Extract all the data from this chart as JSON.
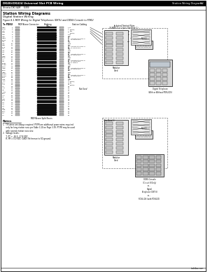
{
  "page_bg": "#ffffff",
  "border_color": "#000000",
  "header_left": "DK40i/DK424 Universal Slot PCB Wiring",
  "header_right": "Station Wiring Diagrams",
  "page_num": "8-2",
  "subtitle": "Strata DK I&M    5/99",
  "section_title": "Station Wiring Diagrams",
  "section_sub": "Digital Station Wiring",
  "figure_title": "Figure 8-1 MDF Wiring for Digital Telephones (DKTs) and DDSS Console to PDKU",
  "wire_colors_left": [
    "W-BL",
    "BL-W",
    "W-O",
    "O-W",
    "W-G",
    "G-W",
    "W-BR",
    "BR-W",
    "W-S",
    "S-W",
    "R-BL",
    "BL-R",
    "R-O",
    "O-R",
    "R-G",
    "G-R",
    "R-BR",
    "BR-R",
    "R-S",
    "S-R",
    "BK-BL",
    "BL-BK",
    "BK-O",
    "O-BK",
    "BK-G",
    "G-BK",
    "BK-BR",
    "BR-BK",
    "BK-S",
    "S-BK",
    "Y-BL",
    "BL-Y",
    "Y-O",
    "O-Y",
    "Y-G",
    "G-Y",
    "Y-BR",
    "BR-Y",
    "Y-S",
    "S-Y",
    "V-BL",
    "BL-V",
    "V-O",
    "O-V",
    "V-G",
    "G-V",
    "V-BR",
    "BR-V",
    "V-S",
    "S-V"
  ],
  "numbers_1_50": [
    1,
    2,
    3,
    4,
    5,
    6,
    7,
    8,
    9,
    10,
    11,
    12,
    13,
    14,
    15,
    16,
    17,
    18,
    19,
    20,
    21,
    22,
    23,
    24,
    25,
    26,
    27,
    28,
    29,
    30,
    31,
    32,
    33,
    34,
    35,
    36,
    37,
    38,
    39,
    40,
    41,
    42,
    43,
    44,
    45,
    46,
    47,
    48,
    49,
    50
  ],
  "notes_header": "Notes",
  "notes": [
    "1.  T/R wires are always required. PT/PR are additional power wires required",
    "     only for long station runs per Table 3-10 on Page 3-39. PT/PR may be used",
    "     with normal station runs also.",
    "2.  Voltage levels:",
    "     T, PT = -26.5--27.8 VDC",
    "     R, PR = 0.0 VDC (GND): Reference to SG ground."
  ],
  "footer_text": "toshiba.com",
  "col_h_pdku": "To PDKU",
  "col_h_mdf": "MDF/Krone Connector",
  "col_h_bridge": "Bridging\nClips",
  "col_h_station": "Station Cabling",
  "jacketed_line1": "Jacketed Twisted Pairs",
  "jacketed_line2": "26 AWG (1 or 2 pair; See Note 1.)",
  "digital_phone_label": "Digital Telephone\n(With or Without PDSU-DS)",
  "ddss_label": "DDSS Console\n(Circuit 8 Only)\nor...\nDigital\nTelephone (DKT 8)\nor...\nPDSU-DS (with PDSU20)",
  "mdf_split_label": "MDF/Krone Split Boxes",
  "not_used_label": "Not Used",
  "see_note_label": "(See Note 1)",
  "modular_card_label": "Modular\nCard"
}
